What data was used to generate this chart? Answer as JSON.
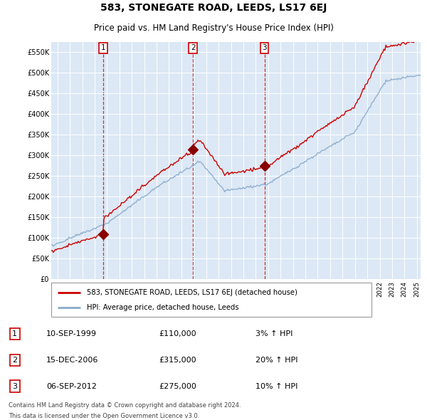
{
  "title": "583, STONEGATE ROAD, LEEDS, LS17 6EJ",
  "subtitle": "Price paid vs. HM Land Registry's House Price Index (HPI)",
  "ylabel_ticks": [
    "£0",
    "£50K",
    "£100K",
    "£150K",
    "£200K",
    "£250K",
    "£300K",
    "£350K",
    "£400K",
    "£450K",
    "£500K",
    "£550K"
  ],
  "ytick_values": [
    0,
    50000,
    100000,
    150000,
    200000,
    250000,
    300000,
    350000,
    400000,
    450000,
    500000,
    550000
  ],
  "ylim": [
    0,
    575000
  ],
  "plot_bg": "#dce8f5",
  "legend_entries": [
    "583, STONEGATE ROAD, LEEDS, LS17 6EJ (detached house)",
    "HPI: Average price, detached house, Leeds"
  ],
  "sale_markers": [
    {
      "num": 1,
      "date_str": "10-SEP-1999",
      "price": 110000,
      "pct": "3%",
      "direction": "↑",
      "x_year": 1999.7
    },
    {
      "num": 2,
      "date_str": "15-DEC-2006",
      "price": 315000,
      "pct": "20%",
      "direction": "↑",
      "x_year": 2006.95
    },
    {
      "num": 3,
      "date_str": "06-SEP-2012",
      "price": 275000,
      "pct": "10%",
      "direction": "↑",
      "x_year": 2012.7
    }
  ],
  "footer_lines": [
    "Contains HM Land Registry data © Crown copyright and database right 2024.",
    "This data is licensed under the Open Government Licence v3.0."
  ],
  "line_color_red": "#cc0000",
  "line_color_blue": "#88aacc",
  "marker_box_color": "#cc0000",
  "xlim_start": 1995.5,
  "xlim_end": 2025.3
}
